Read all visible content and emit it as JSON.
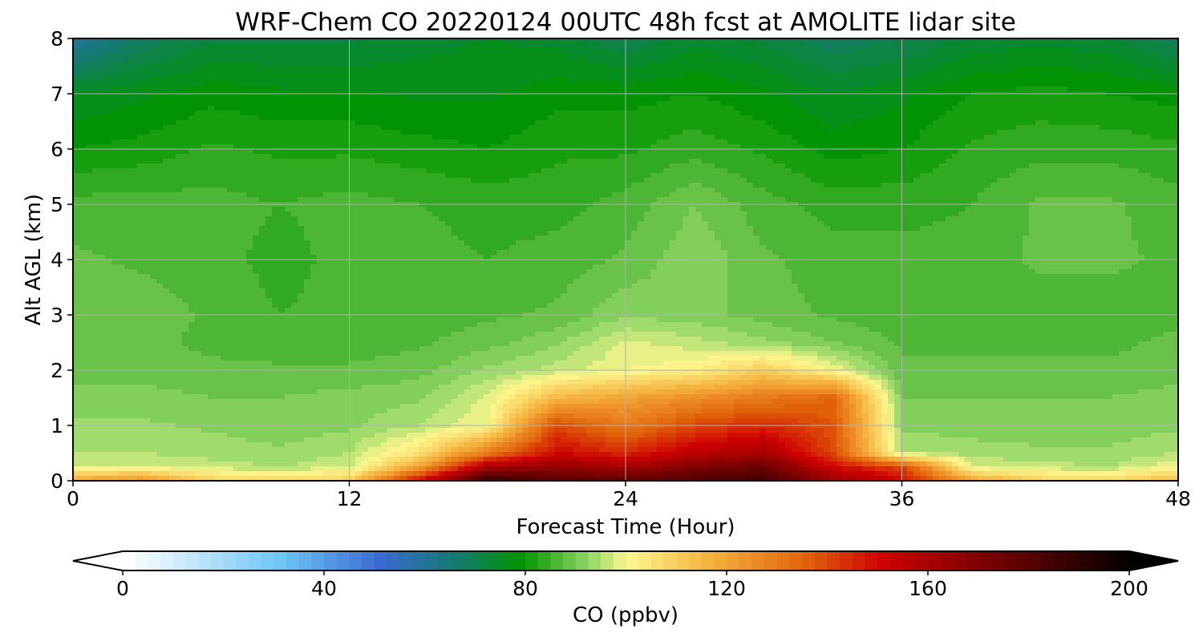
{
  "chart_data": {
    "type": "heatmap",
    "title": "WRF-Chem CO  20220124 00UTC 48h fcst at AMOLITE lidar site",
    "xlabel": "Forecast Time (Hour)",
    "ylabel": "Alt AGL (km)",
    "xlim": [
      0,
      48
    ],
    "ylim": [
      0,
      8
    ],
    "x_ticks": [
      "0",
      "12",
      "24",
      "36",
      "48"
    ],
    "y_ticks": [
      "0",
      "1",
      "2",
      "3",
      "4",
      "5",
      "6",
      "7",
      "8"
    ],
    "grid": true,
    "colorbar": {
      "label": "CO  (ppbv)",
      "range": [
        0,
        200
      ],
      "ticks": [
        "0",
        "40",
        "80",
        "120",
        "160",
        "200"
      ],
      "extend": "both",
      "stops": [
        {
          "value": 0,
          "color": "#ffffff"
        },
        {
          "value": 30,
          "color": "#6ec6f5"
        },
        {
          "value": 50,
          "color": "#3a6ad0"
        },
        {
          "value": 65,
          "color": "#157a6e"
        },
        {
          "value": 78,
          "color": "#009400"
        },
        {
          "value": 92,
          "color": "#99d96a"
        },
        {
          "value": 99,
          "color": "#fcf890"
        },
        {
          "value": 115,
          "color": "#f5b440"
        },
        {
          "value": 135,
          "color": "#e06008"
        },
        {
          "value": 150,
          "color": "#cc0000"
        },
        {
          "value": 175,
          "color": "#660000"
        },
        {
          "value": 200,
          "color": "#000000"
        }
      ]
    },
    "times": [
      0,
      3,
      6,
      9,
      12,
      15,
      18,
      21,
      24,
      27,
      30,
      33,
      36,
      39,
      42,
      45,
      48
    ],
    "altitudes": [
      0,
      0.25,
      0.5,
      1,
      1.5,
      2,
      2.5,
      3,
      4,
      5,
      6,
      7,
      8
    ],
    "values": [
      [
        120,
        125,
        110,
        108,
        110,
        150,
        190,
        180,
        178,
        182,
        185,
        165,
        150,
        120,
        110,
        108,
        115
      ],
      [
        98,
        98,
        96,
        95,
        97,
        120,
        160,
        165,
        160,
        170,
        175,
        150,
        140,
        98,
        96,
        95,
        100
      ],
      [
        95,
        95,
        94,
        93,
        95,
        105,
        130,
        150,
        145,
        155,
        160,
        140,
        95,
        94,
        93,
        93,
        95
      ],
      [
        93,
        93,
        92,
        91,
        92,
        95,
        100,
        140,
        130,
        140,
        145,
        138,
        92,
        91,
        91,
        91,
        92
      ],
      [
        91,
        91,
        90,
        90,
        91,
        92,
        98,
        115,
        120,
        125,
        130,
        135,
        90,
        90,
        90,
        90,
        91
      ],
      [
        89,
        89,
        88,
        88,
        88,
        89,
        93,
        96,
        100,
        102,
        110,
        100,
        88,
        88,
        88,
        88,
        89
      ],
      [
        88,
        88,
        87,
        86,
        86,
        87,
        89,
        92,
        98,
        96,
        93,
        90,
        87,
        87,
        87,
        87,
        88
      ],
      [
        90,
        89,
        87,
        85,
        86,
        86,
        87,
        88,
        92,
        91,
        89,
        87,
        86,
        86,
        86,
        86,
        87
      ],
      [
        88,
        87,
        86,
        84,
        86,
        86,
        85,
        86,
        88,
        92,
        88,
        86,
        86,
        86,
        88,
        88,
        87
      ],
      [
        86,
        86,
        86,
        85,
        86,
        85,
        84,
        84,
        86,
        90,
        86,
        84,
        84,
        85,
        88,
        88,
        86
      ],
      [
        80,
        81,
        83,
        82,
        82,
        81,
        80,
        82,
        82,
        84,
        82,
        79,
        80,
        83,
        84,
        84,
        83
      ],
      [
        75,
        77,
        79,
        78,
        78,
        77,
        77,
        79,
        79,
        80,
        78,
        75,
        77,
        80,
        81,
        80,
        79
      ],
      [
        60,
        68,
        72,
        72,
        72,
        74,
        75,
        74,
        70,
        74,
        72,
        68,
        70,
        73,
        74,
        73,
        68
      ]
    ]
  }
}
